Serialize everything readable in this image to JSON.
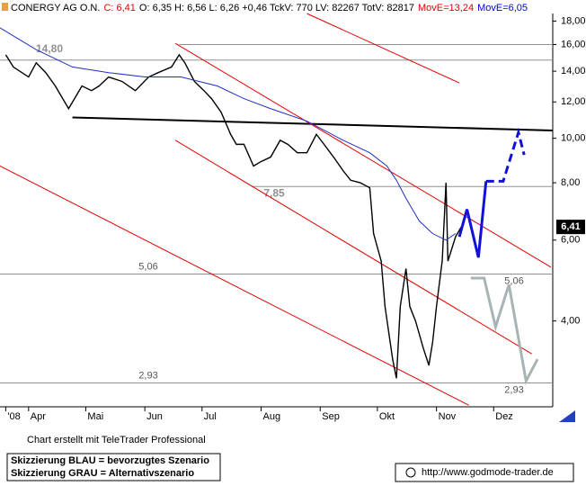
{
  "header": {
    "segments": [
      {
        "text": "CONERGY AG O.N.",
        "color": "#000000"
      },
      {
        "text": "C: 6,41",
        "color": "#e00000"
      },
      {
        "text": "O: 6,35 H: 6,56 L: 6,26 +0,46 TckV: 770 LV: 82267 TotV: 82817",
        "color": "#000000"
      },
      {
        "text": "MovE=13,24",
        "color": "#e00000"
      },
      {
        "text": "MovE=6,05",
        "color": "#0000e0"
      }
    ]
  },
  "chart_data": {
    "type": "line",
    "log_scale": true,
    "xlim": [
      76,
      366
    ],
    "ylim": [
      2.6,
      18.7
    ],
    "xticks": [
      {
        "value": 79,
        "label": "'08"
      },
      {
        "value": 91,
        "label": "Apr"
      },
      {
        "value": 121,
        "label": "Mai"
      },
      {
        "value": 152,
        "label": "Jun"
      },
      {
        "value": 182,
        "label": "Jul"
      },
      {
        "value": 213,
        "label": "Aug"
      },
      {
        "value": 244,
        "label": "Sep"
      },
      {
        "value": 274,
        "label": "Okt"
      },
      {
        "value": 305,
        "label": "Nov"
      },
      {
        "value": 335,
        "label": "Dez"
      }
    ],
    "yticks": [
      {
        "value": 4,
        "label": "4,00"
      },
      {
        "value": 6,
        "label": "6,00"
      },
      {
        "value": 8,
        "label": "8,00"
      },
      {
        "value": 10,
        "label": "10,00"
      },
      {
        "value": 12,
        "label": "12,00"
      },
      {
        "value": 14,
        "label": "14,00"
      },
      {
        "value": 16,
        "label": "16,00"
      },
      {
        "value": 18,
        "label": "18,00"
      }
    ],
    "series": [
      {
        "color": "#000000",
        "x": [
          79,
          83,
          91,
          95,
          100,
          105,
          112,
          119,
          124,
          128,
          133,
          140,
          147,
          154,
          159,
          166,
          170,
          173,
          178,
          183,
          187,
          192,
          197,
          200,
          204,
          209,
          213,
          218,
          223,
          227,
          232,
          237,
          242,
          246,
          251,
          256,
          260,
          265,
          270,
          272,
          276,
          278,
          282,
          284,
          286,
          289,
          291,
          294,
          298,
          301,
          303,
          305,
          308,
          310,
          311,
          315,
          318
        ],
        "values": [
          15.2,
          14.3,
          13.6,
          14.6,
          13.9,
          13.0,
          11.6,
          13.0,
          12.7,
          13.0,
          13.6,
          13.3,
          12.7,
          13.6,
          13.9,
          14.3,
          15.2,
          14.6,
          13.3,
          12.7,
          12.2,
          11.4,
          10.2,
          9.7,
          9.7,
          8.7,
          8.9,
          9.1,
          9.9,
          9.7,
          9.3,
          9.3,
          10.2,
          9.7,
          9.1,
          8.5,
          8.1,
          8.0,
          7.8,
          6.2,
          5.4,
          4.3,
          3.3,
          3.0,
          4.3,
          5.2,
          4.3,
          4.0,
          3.5,
          3.2,
          3.6,
          4.3,
          5.4,
          8.0,
          5.4,
          6.1,
          6.41
        ]
      },
      {
        "color": "#2030c0",
        "x": [
          76,
          95,
          114,
          133,
          152,
          171,
          190,
          204,
          218,
          237,
          256,
          270,
          279,
          284,
          289,
          296,
          303,
          310,
          315
        ],
        "values": [
          17.4,
          15.6,
          14.3,
          13.9,
          13.6,
          13.6,
          13.0,
          12.2,
          11.6,
          10.9,
          9.9,
          9.3,
          8.7,
          8.1,
          7.4,
          6.6,
          6.2,
          6.0,
          6.2
        ]
      }
    ],
    "last_price": {
      "value": 6.41,
      "label": "6,41"
    },
    "levels": [
      {
        "value": 16.0,
        "x": [
          170,
          366
        ]
      },
      {
        "value": 14.8,
        "label": "14,80",
        "x": [
          76,
          366
        ]
      },
      {
        "value": 7.85,
        "label": "7,85",
        "x": [
          208,
          366
        ]
      },
      {
        "value": 5.06,
        "label": "5,06",
        "x": [
          76,
          366
        ]
      },
      {
        "value": 2.93,
        "label": "2,93",
        "x": [
          76,
          366
        ]
      }
    ],
    "level_color": "#909090",
    "trend_lines": [
      {
        "color": "#000000",
        "x": [
          114,
          366
        ],
        "values": [
          11.1,
          10.4
        ]
      },
      {
        "color": "#e00000",
        "x": [
          168,
          365
        ],
        "values": [
          16.1,
          5.24
        ]
      },
      {
        "color": "#e00000",
        "x": [
          168,
          355
        ],
        "values": [
          9.9,
          3.39
        ]
      },
      {
        "color": "#e00000",
        "x": [
          76,
          322
        ],
        "values": [
          8.7,
          2.62
        ]
      },
      {
        "color": "#e00000",
        "x": [
          237,
          317
        ],
        "values": [
          18.7,
          13.2
        ]
      }
    ],
    "scenarios": [
      {
        "color": "#1010d8",
        "dashed": false,
        "x": [
          317,
          321,
          327,
          331
        ],
        "values": [
          6.1,
          7.0,
          5.5,
          8.06
        ]
      },
      {
        "color": "#1010d8",
        "dashed": true,
        "x": [
          331,
          340,
          348,
          351
        ],
        "values": [
          8.06,
          8.06,
          10.3,
          9.2
        ]
      },
      {
        "color": "#a8b4b4",
        "dashed": false,
        "x": [
          323,
          330,
          336,
          343,
          352,
          358
        ],
        "values": [
          4.96,
          4.96,
          3.88,
          4.8,
          2.96,
          3.3
        ]
      }
    ]
  },
  "footer": {
    "credit": "Chart erstellt mit TeleTrader Professional",
    "legend": [
      "Skizzierung BLAU = bevorzugtes Szenario",
      "Skizzierung GRAU = Alternativszenario"
    ],
    "url": "http://www.godmode-trader.de"
  }
}
